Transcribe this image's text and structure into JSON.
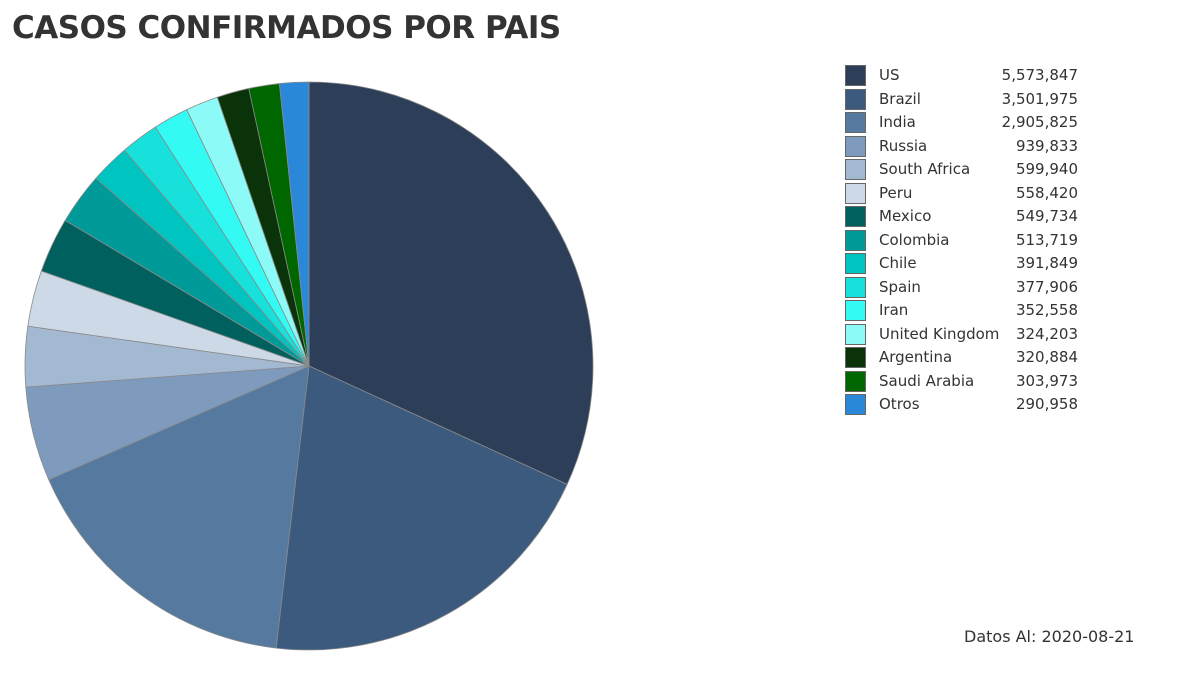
{
  "title": "CASOS CONFIRMADOS POR PAIS",
  "footnote": "Datos Al: 2020-08-21",
  "chart_data": {
    "type": "pie",
    "title": "CASOS CONFIRMADOS POR PAIS",
    "legend_position": "right",
    "slices": [
      {
        "label": "US",
        "value": 5573847,
        "display": "5,573,847",
        "color": "#2c3e58"
      },
      {
        "label": "Brazil",
        "value": 3501975,
        "display": "3,501,975",
        "color": "#3b5a7e"
      },
      {
        "label": "India",
        "value": 2905825,
        "display": "2,905,825",
        "color": "#56799f"
      },
      {
        "label": "Russia",
        "value": 939833,
        "display": "939,833",
        "color": "#7e9bbd"
      },
      {
        "label": "South Africa",
        "value": 599940,
        "display": "599,940",
        "color": "#a3b8d1"
      },
      {
        "label": "Peru",
        "value": 558420,
        "display": "558,420",
        "color": "#cdd9e6"
      },
      {
        "label": "Mexico",
        "value": 549734,
        "display": "549,734",
        "color": "#00605d"
      },
      {
        "label": "Colombia",
        "value": 513719,
        "display": "513,719",
        "color": "#009b98"
      },
      {
        "label": "Chile",
        "value": 391849,
        "display": "391,849",
        "color": "#00c4c0"
      },
      {
        "label": "Spain",
        "value": 377906,
        "display": "377,906",
        "color": "#18e0da"
      },
      {
        "label": "Iran",
        "value": 352558,
        "display": "352,558",
        "color": "#33fbf4"
      },
      {
        "label": "United Kingdom",
        "value": 324203,
        "display": "324,203",
        "color": "#8cfbf8"
      },
      {
        "label": "Argentina",
        "value": 320884,
        "display": "320,884",
        "color": "#0a330a"
      },
      {
        "label": "Saudi Arabia",
        "value": 303973,
        "display": "303,973",
        "color": "#006600"
      },
      {
        "label": "Otros",
        "value": 290958,
        "display": "290,958",
        "color": "#2b87d8"
      }
    ]
  }
}
